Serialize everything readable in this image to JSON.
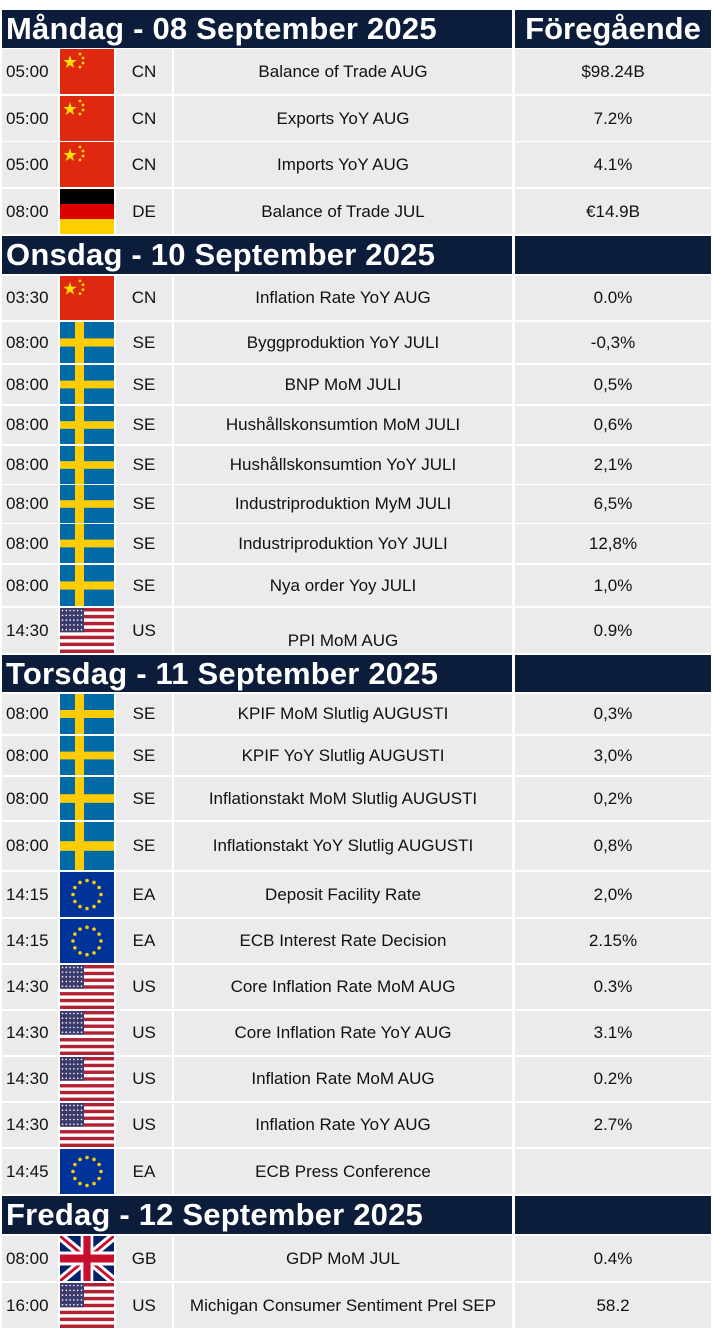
{
  "header_right": "Föregående",
  "sections": [
    {
      "title": "Måndag - 08 September 2025",
      "rows": [
        {
          "time": "05:00",
          "flag": "cn-flag-icon",
          "code": "CN",
          "event": "Balance of Trade AUG",
          "previous": "$98.24B"
        },
        {
          "time": "05:00",
          "flag": "cn-flag-icon",
          "code": "CN",
          "event": "Exports YoY AUG",
          "previous": "7.2%"
        },
        {
          "time": "05:00",
          "flag": "cn-flag-icon",
          "code": "CN",
          "event": "Imports YoY AUG",
          "previous": "4.1%"
        },
        {
          "time": "08:00",
          "flag": "de-flag-icon",
          "code": "DE",
          "event": "Balance of Trade JUL",
          "previous": "€14.9B"
        }
      ]
    },
    {
      "title": "Onsdag - 10 September 2025",
      "rows": [
        {
          "time": "03:30",
          "flag": "cn-flag-icon",
          "code": "CN",
          "event": "Inflation Rate YoY AUG",
          "previous": "0.0%"
        },
        {
          "time": "08:00",
          "flag": "se-flag-icon",
          "code": "SE",
          "event": "Byggproduktion YoY JULI",
          "previous": "-0,3%"
        },
        {
          "time": "08:00",
          "flag": "se-flag-icon",
          "code": "SE",
          "event": "BNP MoM JULI",
          "previous": "0,5%"
        },
        {
          "time": "08:00",
          "flag": "se-flag-icon",
          "code": "SE",
          "event": "Hushållskonsumtion MoM JULI",
          "previous": "0,6%"
        },
        {
          "time": "08:00",
          "flag": "se-flag-icon",
          "code": "SE",
          "event": "Hushållskonsumtion YoY JULI",
          "previous": "2,1%"
        },
        {
          "time": "08:00",
          "flag": "se-flag-icon",
          "code": "SE",
          "event": "Industriproduktion MyM JULI",
          "previous": "6,5%"
        },
        {
          "time": "08:00",
          "flag": "se-flag-icon",
          "code": "SE",
          "event": "Industriproduktion YoY JULI",
          "previous": "12,8%"
        },
        {
          "time": "08:00",
          "flag": "se-flag-icon",
          "code": "SE",
          "event": "Nya order Yoy JULI",
          "previous": "1,0%"
        },
        {
          "time": "14:30",
          "flag": "us-flag-icon",
          "code": "US",
          "event": "PPI MoM AUG",
          "previous": "0.9%"
        }
      ]
    },
    {
      "title": "Torsdag - 11 September 2025",
      "rows": [
        {
          "time": "08:00",
          "flag": "se-flag-icon",
          "code": "SE",
          "event": "KPIF MoM Slutlig AUGUSTI",
          "previous": "0,3%"
        },
        {
          "time": "08:00",
          "flag": "se-flag-icon",
          "code": "SE",
          "event": "KPIF YoY Slutlig AUGUSTI",
          "previous": "3,0%"
        },
        {
          "time": "08:00",
          "flag": "se-flag-icon",
          "code": "SE",
          "event": "Inflationstakt MoM Slutlig AUGUSTI",
          "previous": "0,2%"
        },
        {
          "time": "08:00",
          "flag": "se-flag-icon",
          "code": "SE",
          "event": "Inflationstakt YoY Slutlig AUGUSTI",
          "previous": "0,8%"
        },
        {
          "time": "14:15",
          "flag": "eu-flag-icon",
          "code": "EA",
          "event": "Deposit Facility Rate",
          "previous": "2,0%"
        },
        {
          "time": "14:15",
          "flag": "eu-flag-icon",
          "code": "EA",
          "event": "ECB Interest Rate Decision",
          "previous": "2.15%"
        },
        {
          "time": "14:30",
          "flag": "us-flag-icon",
          "code": "US",
          "event": "Core Inflation Rate MoM AUG",
          "previous": "0.3%"
        },
        {
          "time": "14:30",
          "flag": "us-flag-icon",
          "code": "US",
          "event": "Core Inflation Rate YoY AUG",
          "previous": "3.1%"
        },
        {
          "time": "14:30",
          "flag": "us-flag-icon",
          "code": "US",
          "event": "Inflation Rate MoM AUG",
          "previous": "0.2%"
        },
        {
          "time": "14:30",
          "flag": "us-flag-icon",
          "code": "US",
          "event": "Inflation Rate YoY AUG",
          "previous": "2.7%"
        },
        {
          "time": "14:45",
          "flag": "eu-flag-icon",
          "code": "EA",
          "event": "ECB Press Conference",
          "previous": ""
        }
      ]
    },
    {
      "title": "Fredag - 12 September 2025",
      "rows": [
        {
          "time": "08:00",
          "flag": "gb-flag-icon",
          "code": "GB",
          "event": "GDP MoM JUL",
          "previous": "0.4%"
        },
        {
          "time": "16:00",
          "flag": "us-flag-icon",
          "code": "US",
          "event": "Michigan Consumer Sentiment Prel SEP",
          "previous": "58.2"
        }
      ]
    }
  ]
}
